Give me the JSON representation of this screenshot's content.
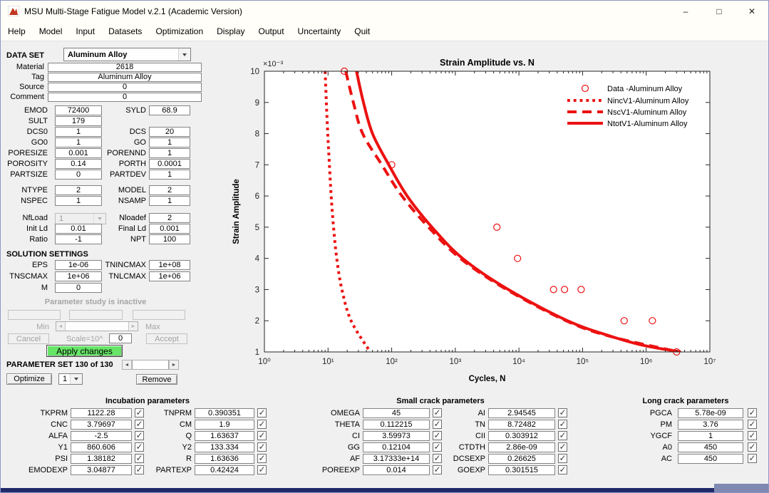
{
  "window": {
    "title": "MSU Multi-Stage Fatigue Model v.2.1 (Academic Version)",
    "controls": {
      "minimize": "–",
      "maximize": "□",
      "close": "✕"
    }
  },
  "menu": {
    "items": [
      "Help",
      "Model",
      "Input",
      "Datasets",
      "Optimization",
      "Display",
      "Output",
      "Uncertainty",
      "Quit"
    ]
  },
  "left_panel": {
    "dataset_label": "DATA SET",
    "dataset_value": "Aluminum Alloy",
    "info_rows": [
      {
        "label": "Material",
        "value": "2618"
      },
      {
        "label": "Tag",
        "value": "Aluminum Alloy"
      },
      {
        "label": "Source",
        "value": "0"
      },
      {
        "label": "Comment",
        "value": "0"
      }
    ],
    "pair_rows": [
      {
        "l1": "EMOD",
        "v1": "72400",
        "l2": "SYLD",
        "v2": "68.9"
      },
      {
        "l1": "SULT",
        "v1": "179"
      },
      {
        "l1": "DCS0",
        "v1": "1",
        "l2": "DCS",
        "v2": "20"
      },
      {
        "l1": "GO0",
        "v1": "1",
        "l2": "GO",
        "v2": "1"
      },
      {
        "l1": "PORESIZE",
        "v1": "0.001",
        "l2": "PORENND",
        "v2": "1"
      },
      {
        "l1": "POROSITY",
        "v1": "0.14",
        "l2": "PORTH",
        "v2": "0.0001"
      },
      {
        "l1": "PARTSIZE",
        "v1": "0",
        "l2": "PARTDEV",
        "v2": "1"
      },
      {
        "l1": "NTYPE",
        "v1": "2",
        "l2": "MODEL",
        "v2": "2",
        "gap": 7
      },
      {
        "l1": "NSPEC",
        "v1": "1",
        "l2": "NSAMP",
        "v2": "1"
      },
      {
        "l1": "NfLoad",
        "v1": "1",
        "combo": true,
        "l2": "Nloadef",
        "v2": "2",
        "gap": 9
      },
      {
        "l1": "Init Ld",
        "v1": "0.01",
        "l2": "Final Ld",
        "v2": "0.001"
      },
      {
        "l1": "Ratio",
        "v1": "-1",
        "l2": "NPT",
        "v2": "100"
      }
    ],
    "solution_header": "SOLUTION SETTINGS",
    "solution_rows": [
      {
        "l1": "EPS",
        "v1": "1e-06",
        "l2": "TNINCMAX",
        "v2": "1e+08"
      },
      {
        "l1": "TNSCMAX",
        "v1": "1e+06",
        "l2": "TNLCMAX",
        "v2": "1e+06"
      },
      {
        "l1": "M",
        "v1": "0"
      }
    ]
  },
  "param_study": {
    "status": "Parameter study is inactive",
    "fields": [
      "",
      "",
      ""
    ],
    "min_label": "Min",
    "max_label": "Max",
    "cancel_label": "Cancel",
    "scale_label": "Scale=10^",
    "scale_value": "0",
    "accept_label": "Accept",
    "apply_label": "Apply changes"
  },
  "param_set": {
    "label": "PARAMETER SET 130 of 130",
    "optimize_label": "Optimize",
    "selector_value": "1",
    "remove_label": "Remove"
  },
  "bottom_panels": [
    {
      "id": "inc",
      "title": "Incubation parameters",
      "rows": [
        {
          "l1": "TKPRM",
          "v1": "1122.28",
          "c1": true,
          "l2": "TNPRM",
          "v2": "0.390351",
          "c2": true
        },
        {
          "l1": "CNC",
          "v1": "3.79697",
          "c1": true,
          "l2": "CM",
          "v2": "1.9",
          "c2": true
        },
        {
          "l1": "ALFA",
          "v1": "-2.5",
          "c1": true,
          "l2": "Q",
          "v2": "1.63637",
          "c2": true
        },
        {
          "l1": "Y1",
          "v1": "860.606",
          "c1": true,
          "l2": "Y2",
          "v2": "133.334",
          "c2": true
        },
        {
          "l1": "PSI",
          "v1": "1.38182",
          "c1": true,
          "l2": "R",
          "v2": "1.63636",
          "c2": true
        },
        {
          "l1": "EMODEXP",
          "v1": "3.04877",
          "c1": true,
          "l2": "PARTEXP",
          "v2": "0.42424",
          "c2": true
        }
      ]
    },
    {
      "id": "sm",
      "title": "Small crack parameters",
      "rows": [
        {
          "l1": "OMEGA",
          "v1": "45",
          "c1": true,
          "l2": "AI",
          "v2": "2.94545",
          "c2": true
        },
        {
          "l1": "THETA",
          "v1": "0.112215",
          "c1": true,
          "l2": "TN",
          "v2": "8.72482",
          "c2": true
        },
        {
          "l1": "CI",
          "v1": "3.59973",
          "c1": true,
          "l2": "CII",
          "v2": "0.303912",
          "c2": true
        },
        {
          "l1": "GG",
          "v1": "0.12104",
          "c1": true,
          "l2": "CTDTH",
          "v2": "2.86e-09",
          "c2": true
        },
        {
          "l1": "AF",
          "v1": "3.17333e+14",
          "c1": true,
          "l2": "DCSEXP",
          "v2": "0.26625",
          "c2": true
        },
        {
          "l1": "POREEXP",
          "v1": "0.014",
          "c1": true,
          "l2": "GOEXP",
          "v2": "0.301515",
          "c2": true
        }
      ]
    },
    {
      "id": "lg",
      "title": "Long crack parameters",
      "rows": [
        {
          "l1": "PGCA",
          "v1": "5.78e-09",
          "c1": true
        },
        {
          "l1": "PM",
          "v1": "3.76",
          "c1": true
        },
        {
          "l1": "YGCF",
          "v1": "1",
          "c1": true
        },
        {
          "l1": "A0",
          "v1": "450",
          "c1": true
        },
        {
          "l1": "AC",
          "v1": "450",
          "c1": true
        }
      ]
    }
  ],
  "chart_data": {
    "type": "line",
    "title": "Strain Amplitude vs. N",
    "xlabel": "Cycles, N",
    "ylabel": "Strain Amplitude",
    "x_scale": "log",
    "x_range": [
      1,
      10000000
    ],
    "x_tick_labels": [
      "10⁰",
      "10¹",
      "10²",
      "10³",
      "10⁴",
      "10⁵",
      "10⁶",
      "10⁷"
    ],
    "y_tick_labels": [
      "1",
      "2",
      "3",
      "4",
      "5",
      "6",
      "7",
      "8",
      "9",
      "10"
    ],
    "y_multiplier_label": "×10⁻³",
    "y_range_millistrain": [
      1,
      10
    ],
    "grid": false,
    "legend_position": "upper right",
    "accent_color": "#EC1111",
    "series": [
      {
        "name": "Data -Aluminum Alloy",
        "type": "scatter",
        "marker": "circle",
        "color": "#EC1111",
        "points": [
          [
            18,
            10
          ],
          [
            100,
            7
          ],
          [
            4500,
            5
          ],
          [
            9500,
            4
          ],
          [
            35000,
            3
          ],
          [
            52000,
            3
          ],
          [
            95000,
            3
          ],
          [
            450000,
            2
          ],
          [
            1250000,
            2
          ],
          [
            3000000,
            1
          ]
        ]
      },
      {
        "name": "NincV1-Aluminum Alloy",
        "type": "line",
        "style": "dotted",
        "color": "#EC1111",
        "points": [
          [
            9,
            10
          ],
          [
            9.4,
            9
          ],
          [
            9.9,
            8
          ],
          [
            10.5,
            7
          ],
          [
            11.2,
            6
          ],
          [
            12.2,
            5
          ],
          [
            13.7,
            4
          ],
          [
            16.5,
            3
          ],
          [
            23,
            2
          ],
          [
            46,
            1
          ]
        ]
      },
      {
        "name": "NscV1-Aluminum Alloy",
        "type": "line",
        "style": "dashed",
        "color": "#EC1111",
        "points": [
          [
            19,
            10
          ],
          [
            25,
            9
          ],
          [
            35,
            8
          ],
          [
            70,
            7
          ],
          [
            145,
            6
          ],
          [
            380,
            5
          ],
          [
            1200,
            4
          ],
          [
            6400,
            3
          ],
          [
            55000,
            2
          ],
          [
            270000,
            1.5
          ],
          [
            3300000,
            1
          ]
        ]
      },
      {
        "name": "NtotV1-Aluminum Alloy",
        "type": "line",
        "style": "solid",
        "color": "#EC1111",
        "points": [
          [
            28,
            10
          ],
          [
            36,
            9
          ],
          [
            50,
            8
          ],
          [
            90,
            7
          ],
          [
            175,
            6
          ],
          [
            430,
            5
          ],
          [
            1300,
            4
          ],
          [
            6800,
            3
          ],
          [
            58000,
            2
          ],
          [
            280000,
            1.5
          ],
          [
            950000,
            1.2
          ],
          [
            3500000,
            1
          ]
        ]
      }
    ]
  }
}
